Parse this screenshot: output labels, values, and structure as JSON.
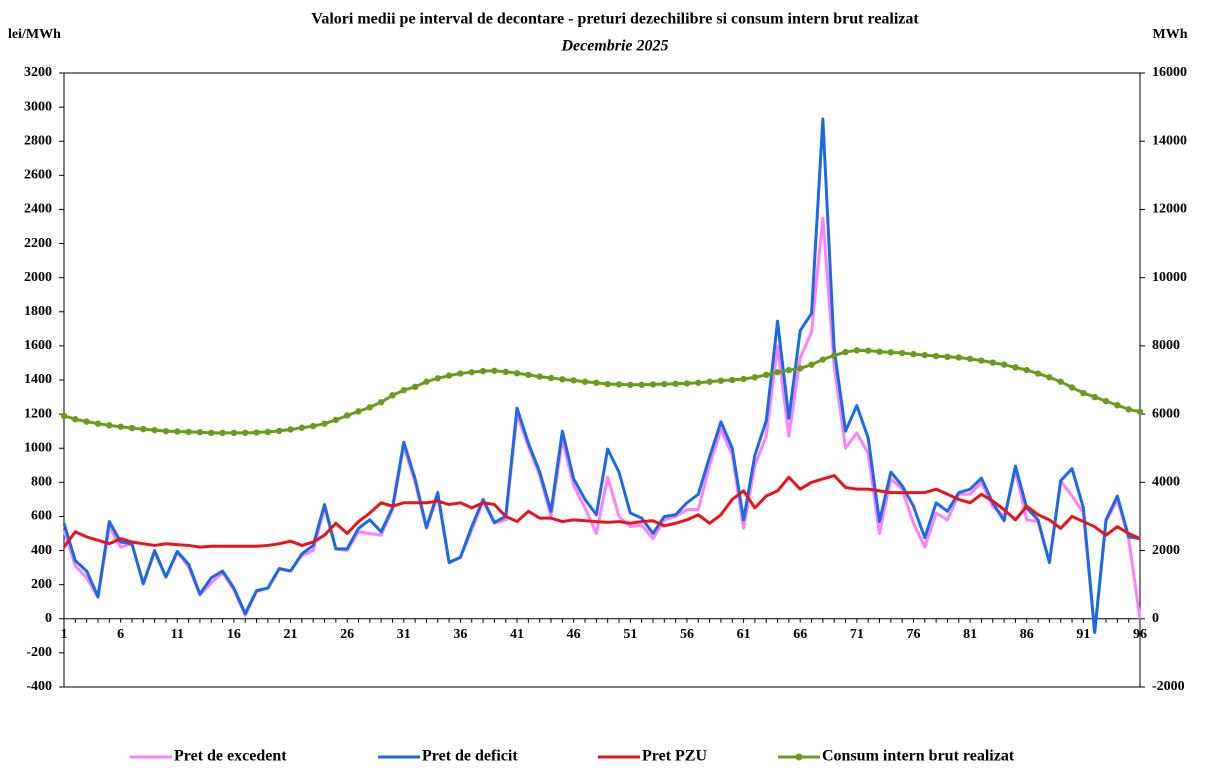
{
  "chart_data": {
    "type": "line",
    "title": "Valori medii pe interval de decontare - preturi dezechilibre si consum intern brut realizat",
    "subtitle": "Decembrie 2025",
    "ylabel": "lei/MWh",
    "y2label": "MWh",
    "categories": [
      "1",
      null,
      null,
      null,
      null,
      "6",
      null,
      null,
      null,
      null,
      "11",
      null,
      null,
      null,
      null,
      "16",
      null,
      null,
      null,
      null,
      "21",
      null,
      null,
      null,
      null,
      "26",
      null,
      null,
      null,
      null,
      "31",
      null,
      null,
      null,
      null,
      "36",
      null,
      null,
      null,
      null,
      "41",
      null,
      null,
      null,
      null,
      "46",
      null,
      null,
      null,
      null,
      "51",
      null,
      null,
      null,
      null,
      "56",
      null,
      null,
      null,
      null,
      "61",
      null,
      null,
      null,
      null,
      "66",
      null,
      null,
      null,
      null,
      "71",
      null,
      null,
      null,
      null,
      "76",
      null,
      null,
      null,
      null,
      "81",
      null,
      null,
      null,
      null,
      "86",
      null,
      null,
      null,
      null,
      "91",
      null,
      null,
      null,
      null,
      "96"
    ],
    "ylim": [
      -400,
      3200
    ],
    "yticks": [
      -400,
      -200,
      0,
      200,
      400,
      600,
      800,
      1000,
      1200,
      1400,
      1600,
      1800,
      2000,
      2200,
      2400,
      2600,
      2800,
      3000,
      3200
    ],
    "y2lim": [
      -2000,
      16000
    ],
    "y2ticks": [
      -2000,
      0,
      2000,
      4000,
      6000,
      8000,
      10000,
      12000,
      14000,
      16000
    ],
    "legend": "bottom",
    "series": [
      {
        "name": "Pret de excedent",
        "color": "#ff80ff",
        "values": [
          520,
          310,
          240,
          125,
          540,
          420,
          440,
          205,
          390,
          245,
          390,
          305,
          140,
          210,
          270,
          170,
          20,
          160,
          180,
          290,
          280,
          370,
          400,
          650,
          410,
          400,
          510,
          500,
          490,
          640,
          1010,
          800,
          530,
          720,
          330,
          360,
          520,
          690,
          560,
          580,
          1200,
          1010,
          840,
          600,
          1050,
          780,
          650,
          500,
          830,
          600,
          540,
          550,
          470,
          580,
          600,
          640,
          640,
          900,
          1110,
          960,
          530,
          900,
          1070,
          1600,
          1070,
          1530,
          1680,
          2350,
          1480,
          1000,
          1090,
          970,
          500,
          820,
          760,
          560,
          420,
          620,
          580,
          730,
          730,
          800,
          660,
          600,
          870,
          580,
          570,
          330,
          810,
          720,
          620,
          -80,
          570,
          700,
          470,
          0
        ]
      },
      {
        "name": "Pret de deficit",
        "color": "#1a6ae6",
        "values": [
          560,
          340,
          280,
          130,
          570,
          450,
          440,
          205,
          400,
          245,
          395,
          320,
          145,
          240,
          280,
          180,
          30,
          165,
          180,
          295,
          280,
          380,
          430,
          670,
          410,
          410,
          530,
          580,
          510,
          650,
          1035,
          820,
          535,
          740,
          330,
          360,
          540,
          700,
          565,
          600,
          1235,
          1030,
          860,
          630,
          1100,
          820,
          700,
          610,
          995,
          860,
          620,
          590,
          500,
          600,
          610,
          680,
          730,
          950,
          1155,
          1000,
          580,
          960,
          1160,
          1745,
          1175,
          1690,
          1790,
          2930,
          1580,
          1100,
          1250,
          1060,
          570,
          860,
          780,
          660,
          475,
          680,
          630,
          740,
          760,
          825,
          680,
          575,
          895,
          650,
          580,
          330,
          810,
          880,
          650,
          -80,
          580,
          720,
          480,
          470
        ]
      },
      {
        "name": "Pret PZU",
        "color": "#e8141a",
        "values": [
          420,
          510,
          480,
          460,
          440,
          470,
          450,
          440,
          430,
          440,
          435,
          430,
          420,
          425,
          425,
          425,
          425,
          425,
          430,
          440,
          455,
          430,
          450,
          490,
          560,
          500,
          570,
          620,
          680,
          660,
          680,
          680,
          680,
          690,
          670,
          680,
          650,
          680,
          670,
          600,
          570,
          630,
          590,
          590,
          570,
          580,
          575,
          570,
          565,
          570,
          560,
          570,
          575,
          545,
          560,
          580,
          610,
          560,
          610,
          700,
          750,
          650,
          720,
          750,
          830,
          760,
          800,
          820,
          840,
          770,
          760,
          760,
          750,
          740,
          740,
          740,
          740,
          760,
          730,
          700,
          680,
          730,
          690,
          640,
          580,
          660,
          610,
          580,
          530,
          600,
          570,
          540,
          490,
          540,
          500,
          470
        ]
      },
      {
        "name": "Consum intern brut realizat",
        "color": "#6b9a1f",
        "axis": "y2",
        "marker": true,
        "values": [
          5950,
          5850,
          5780,
          5720,
          5670,
          5630,
          5590,
          5560,
          5530,
          5500,
          5490,
          5480,
          5470,
          5450,
          5450,
          5450,
          5450,
          5460,
          5480,
          5510,
          5550,
          5600,
          5650,
          5720,
          5830,
          5960,
          6080,
          6200,
          6350,
          6550,
          6700,
          6800,
          6950,
          7050,
          7130,
          7190,
          7230,
          7260,
          7270,
          7240,
          7200,
          7150,
          7100,
          7060,
          7020,
          6990,
          6950,
          6920,
          6880,
          6870,
          6860,
          6860,
          6870,
          6880,
          6890,
          6900,
          6920,
          6950,
          6980,
          7000,
          7030,
          7080,
          7150,
          7230,
          7290,
          7340,
          7450,
          7600,
          7720,
          7820,
          7870,
          7860,
          7830,
          7810,
          7790,
          7760,
          7730,
          7700,
          7680,
          7660,
          7620,
          7570,
          7510,
          7450,
          7370,
          7290,
          7190,
          7080,
          6950,
          6780,
          6620,
          6500,
          6380,
          6260,
          6140,
          6070
        ]
      }
    ]
  }
}
